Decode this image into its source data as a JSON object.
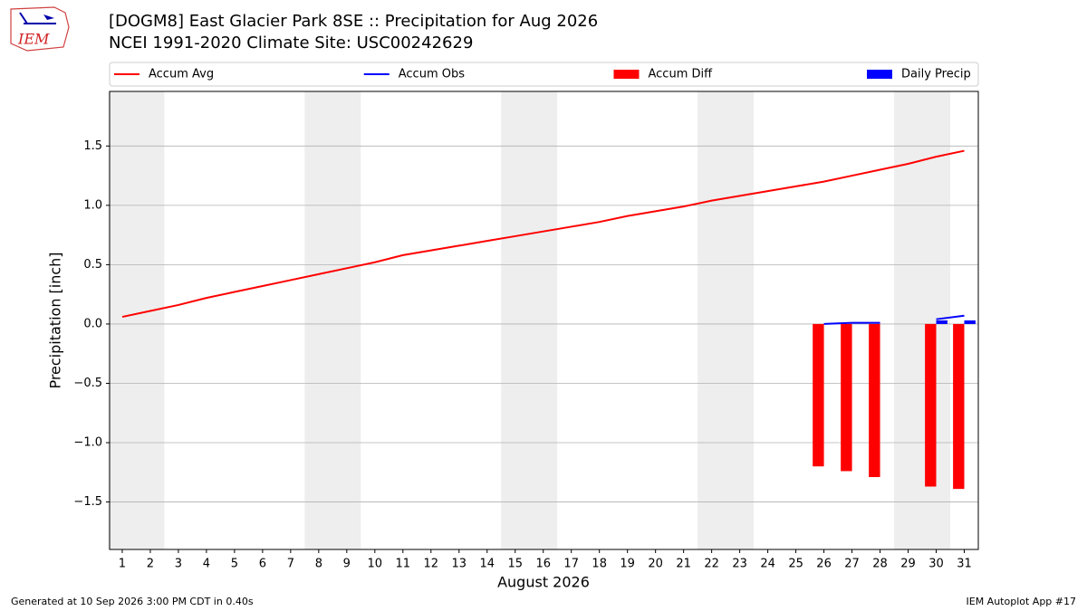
{
  "logo": "IEM",
  "footer_left": "Generated at 10 Sep 2026 3:00 PM CDT in 0.40s",
  "footer_right": "IEM Autoplot App #17",
  "chart_data": {
    "type": "combo",
    "title": "[DOGM8] East Glacier Park 8SE :: Precipitation for Aug 2026",
    "subtitle": "NCEI 1991-2020 Climate Site: USC00242629",
    "x_label": "August 2026",
    "y_label": "Precipitation [inch]",
    "x": [
      1,
      2,
      3,
      4,
      5,
      6,
      7,
      8,
      9,
      10,
      11,
      12,
      13,
      14,
      15,
      16,
      17,
      18,
      19,
      20,
      21,
      22,
      23,
      24,
      25,
      26,
      27,
      28,
      29,
      30,
      31
    ],
    "xlim": [
      0.55,
      31.5
    ],
    "xticks": [
      1,
      2,
      3,
      4,
      5,
      6,
      7,
      8,
      9,
      10,
      11,
      12,
      13,
      14,
      15,
      16,
      17,
      18,
      19,
      20,
      21,
      22,
      23,
      24,
      25,
      26,
      27,
      28,
      29,
      30,
      31
    ],
    "ylim": [
      -1.9,
      1.96
    ],
    "yticks": [
      {
        "value": -1.5,
        "label": "−1.5"
      },
      {
        "value": -1.0,
        "label": "−1.0"
      },
      {
        "value": -0.5,
        "label": "−0.5"
      },
      {
        "value": 0,
        "label": "0.0"
      },
      0.5,
      {
        "value": 1,
        "label": "1.0"
      },
      1.5
    ],
    "grid": true,
    "legend": "top",
    "shaded_ranges": [
      [
        0.5,
        2.5
      ],
      [
        7.5,
        9.5
      ],
      [
        14.5,
        16.5
      ],
      [
        21.5,
        23.5
      ],
      [
        28.5,
        30.5
      ]
    ],
    "shade_color": "#eeeeee",
    "series": [
      {
        "name": "Accum Avg",
        "type": "line",
        "color": "#ff0000",
        "values": [
          0.06,
          0.11,
          0.16,
          0.22,
          0.27,
          0.32,
          0.37,
          0.42,
          0.47,
          0.52,
          0.58,
          0.62,
          0.66,
          0.7,
          0.74,
          0.78,
          0.82,
          0.86,
          0.91,
          0.95,
          0.99,
          1.04,
          1.08,
          1.12,
          1.16,
          1.2,
          1.25,
          1.3,
          1.35,
          1.41,
          1.46
        ]
      },
      {
        "name": "Accum Obs",
        "type": "line",
        "color": "#0000ff",
        "values": [
          null,
          null,
          null,
          null,
          null,
          null,
          null,
          null,
          null,
          null,
          null,
          null,
          null,
          null,
          null,
          null,
          null,
          null,
          null,
          null,
          null,
          null,
          null,
          null,
          null,
          0.0,
          0.01,
          0.01,
          null,
          0.04,
          0.07
        ]
      },
      {
        "name": "Accum Diff",
        "type": "bar",
        "color": "#ff0000",
        "values": [
          null,
          null,
          null,
          null,
          null,
          null,
          null,
          null,
          null,
          null,
          null,
          null,
          null,
          null,
          null,
          null,
          null,
          null,
          null,
          null,
          null,
          null,
          null,
          null,
          null,
          -1.2,
          -1.24,
          -1.29,
          null,
          -1.37,
          -1.39
        ]
      },
      {
        "name": "Daily Precip",
        "type": "bar",
        "color": "#0000ff",
        "values": [
          null,
          null,
          null,
          null,
          null,
          null,
          null,
          null,
          null,
          null,
          null,
          null,
          null,
          null,
          null,
          null,
          null,
          null,
          null,
          null,
          null,
          null,
          null,
          null,
          null,
          0,
          0,
          0,
          null,
          0.03,
          0.03
        ]
      }
    ]
  }
}
